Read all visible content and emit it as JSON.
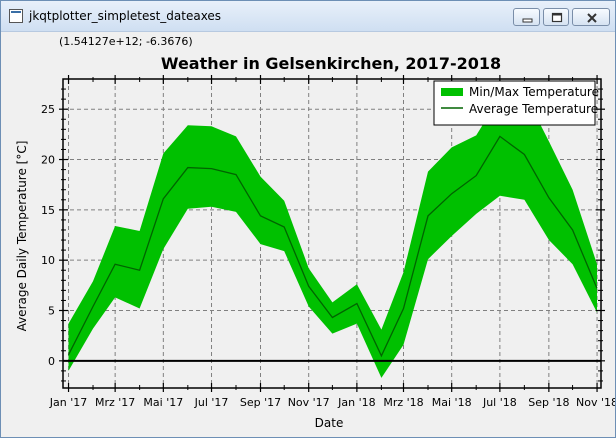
{
  "window": {
    "title": "jkqtplotter_simpletest_dateaxes",
    "icon": "app-icon",
    "buttons": [
      "minimize-icon",
      "maximize-icon",
      "close-icon"
    ]
  },
  "readout": "(1.54127e+12; -6.3676)",
  "colors": {
    "band": "#00c000",
    "line": "#006400",
    "zero_line": "#000000",
    "grid": "#808080"
  },
  "chart_data": {
    "type": "area",
    "title": "Weather in Gelsenkirchen, 2017-2018",
    "xlabel": "Date",
    "ylabel": "Average Daily Temperature [°C]",
    "xlim": [
      "2016-12-25",
      "2018-11-06"
    ],
    "ylim": [
      -2.7,
      28.0
    ],
    "x_ticks": [
      "2017-01-01",
      "2017-03-01",
      "2017-05-01",
      "2017-07-01",
      "2017-09-01",
      "2017-11-01",
      "2018-01-01",
      "2018-03-01",
      "2018-05-01",
      "2018-07-01",
      "2018-09-01",
      "2018-11-01"
    ],
    "x_tick_labels": [
      "Jan '17",
      "Mrz '17",
      "Mai '17",
      "Jul '17",
      "Sep '17",
      "Nov '17",
      "Jan '18",
      "Mrz '18",
      "Mai '18",
      "Jul '18",
      "Sep '18",
      "Nov '18"
    ],
    "y_ticks": [
      0,
      5,
      10,
      15,
      20,
      25
    ],
    "grid": true,
    "legend_position": "top-right",
    "series": [
      {
        "name": "Min/Max Temperature",
        "kind": "range",
        "x": [
          "2017-01-01",
          "2017-02-01",
          "2017-03-01",
          "2017-04-01",
          "2017-05-01",
          "2017-06-01",
          "2017-07-01",
          "2017-08-01",
          "2017-09-01",
          "2017-10-01",
          "2017-11-01",
          "2017-12-01",
          "2018-01-01",
          "2018-02-01",
          "2018-03-01",
          "2018-04-01",
          "2018-05-01",
          "2018-06-01",
          "2018-07-01",
          "2018-08-01",
          "2018-09-01",
          "2018-10-01",
          "2018-11-01"
        ],
        "min": [
          -1.0,
          3.2,
          6.3,
          5.2,
          11.1,
          15.1,
          15.3,
          14.8,
          11.6,
          10.9,
          5.4,
          2.7,
          3.7,
          -1.7,
          1.6,
          10.1,
          12.4,
          14.6,
          16.4,
          16.0,
          12.0,
          9.6,
          4.8
        ],
        "max": [
          3.7,
          7.9,
          13.4,
          12.9,
          20.6,
          23.4,
          23.3,
          22.3,
          18.3,
          15.9,
          9.2,
          5.8,
          7.6,
          3.1,
          8.8,
          18.8,
          21.2,
          22.4,
          26.2,
          26.6,
          21.8,
          17.0,
          9.6
        ]
      },
      {
        "name": "Average Temperature",
        "kind": "line",
        "x": [
          "2017-01-01",
          "2017-02-01",
          "2017-03-01",
          "2017-04-01",
          "2017-05-01",
          "2017-06-01",
          "2017-07-01",
          "2017-08-01",
          "2017-09-01",
          "2017-10-01",
          "2017-11-01",
          "2017-12-01",
          "2018-01-01",
          "2018-02-01",
          "2018-03-01",
          "2018-04-01",
          "2018-05-01",
          "2018-06-01",
          "2018-07-01",
          "2018-08-01",
          "2018-09-01",
          "2018-10-01",
          "2018-11-01"
        ],
        "values": [
          0.6,
          5.4,
          9.6,
          9.0,
          16.1,
          19.2,
          19.1,
          18.5,
          14.4,
          13.3,
          7.4,
          4.3,
          5.7,
          0.5,
          5.2,
          14.4,
          16.6,
          18.4,
          22.3,
          20.5,
          16.2,
          13.0,
          7.2
        ]
      }
    ]
  }
}
